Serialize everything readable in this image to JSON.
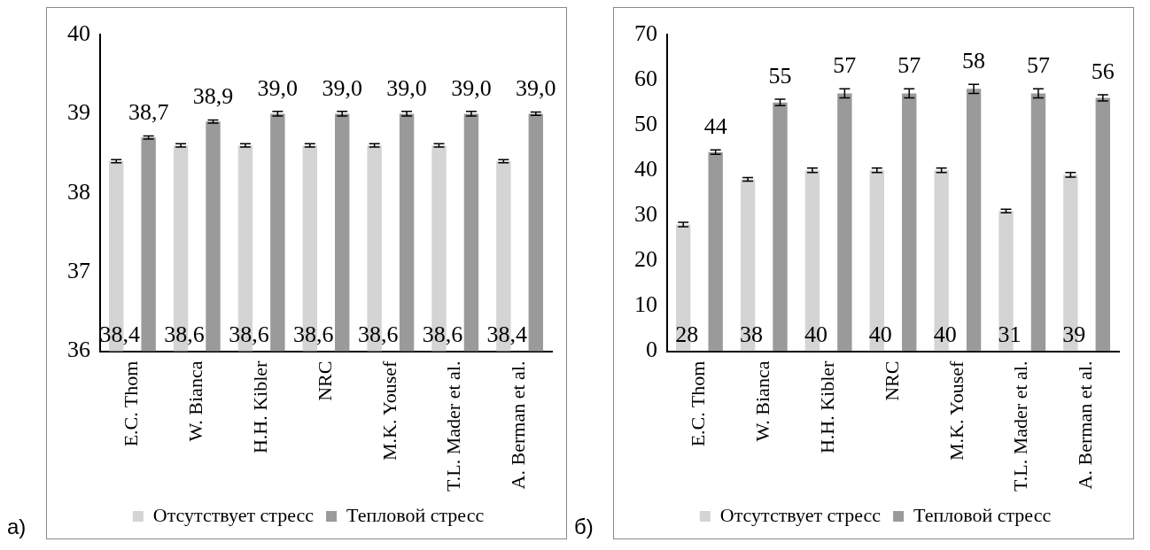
{
  "chart_data": [
    {
      "type": "bar",
      "annotations": [
        "a)"
      ],
      "categories": [
        "E.C. Thom",
        "W. Bianca",
        "H.H. Kibler",
        "NRC",
        "M.K. Yousef",
        "T.L. Mader et al.",
        "A. Berman et al."
      ],
      "ylim": [
        36,
        40
      ],
      "yticks": [
        36,
        37,
        38,
        39,
        40
      ],
      "grid": false,
      "legend": "bottom",
      "series": [
        {
          "name": "Отсутствует стресс",
          "color": "#d4d4d4",
          "values": [
            38.4,
            38.6,
            38.6,
            38.6,
            38.6,
            38.6,
            38.4
          ],
          "errors": [
            0.02,
            0.02,
            0.02,
            0.02,
            0.02,
            0.02,
            0.02
          ],
          "value_labels": [
            "38,4",
            "38,6",
            "38,6",
            "38,6",
            "38,6",
            "38,6",
            "38,4"
          ]
        },
        {
          "name": "Тепловой стресс",
          "color": "#9a9a9a",
          "values": [
            38.7,
            38.9,
            39.0,
            39.0,
            39.0,
            39.0,
            39.0
          ],
          "errors": [
            0.02,
            0.02,
            0.03,
            0.03,
            0.03,
            0.03,
            0.02
          ],
          "value_labels": [
            "38,7",
            "38,9",
            "39,0",
            "39,0",
            "39,0",
            "39,0",
            "39,0"
          ]
        }
      ]
    },
    {
      "type": "bar",
      "annotations": [
        "б)"
      ],
      "categories": [
        "E.C. Thom",
        "W. Bianca",
        "H.H. Kibler",
        "NRC",
        "M.K. Yousef",
        "T.L. Mader et al.",
        "A. Berman et al."
      ],
      "ylim": [
        0,
        70
      ],
      "yticks": [
        0,
        10,
        20,
        30,
        40,
        50,
        60,
        70
      ],
      "grid": false,
      "legend": "bottom",
      "series": [
        {
          "name": "Отсутствует стресс",
          "color": "#d4d4d4",
          "values": [
            28,
            38,
            40,
            40,
            40,
            31,
            39
          ],
          "errors": [
            0.5,
            0.4,
            0.5,
            0.5,
            0.5,
            0.4,
            0.5
          ],
          "value_labels": [
            "28",
            "38",
            "40",
            "40",
            "40",
            "31",
            "39"
          ]
        },
        {
          "name": "Тепловой стресс",
          "color": "#9a9a9a",
          "values": [
            44,
            55,
            57,
            57,
            58,
            57,
            56
          ],
          "errors": [
            0.5,
            0.7,
            1,
            1,
            1,
            1,
            0.7
          ],
          "value_labels": [
            "44",
            "55",
            "57",
            "57",
            "58",
            "57",
            "56"
          ]
        }
      ]
    }
  ]
}
